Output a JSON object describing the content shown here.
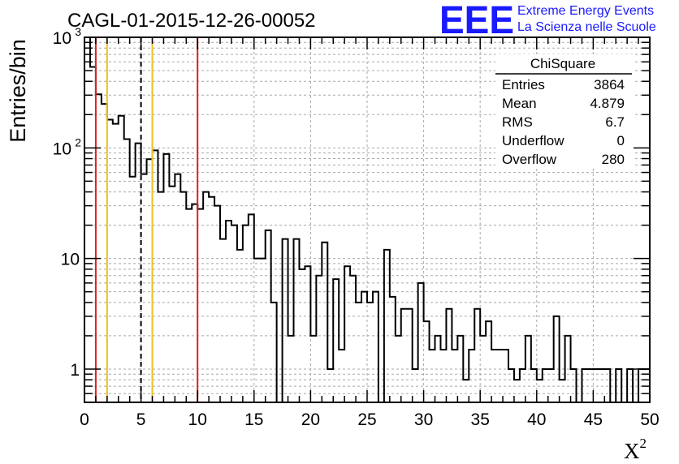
{
  "chart_data": {
    "type": "histogram",
    "title": "CAGL-01-2015-12-26-00052",
    "xlabel": "X",
    "xlabel_superscript": "2",
    "ylabel": "Entries/bin",
    "x_range": [
      0,
      50
    ],
    "y_range": [
      0.5,
      1000
    ],
    "y_scale": "log",
    "grid": true,
    "bin_width": 0.5,
    "x_ticks": [
      "0",
      "5",
      "10",
      "15",
      "20",
      "25",
      "30",
      "35",
      "40",
      "45",
      "50"
    ],
    "y_ticks": [
      {
        "value": 1,
        "label": "1"
      },
      {
        "value": 10,
        "label": "10"
      },
      {
        "value": 100,
        "label": "10",
        "sup": "2"
      },
      {
        "value": 1000,
        "label": "10",
        "sup": "3"
      }
    ],
    "values": [
      1000,
      540,
      305,
      250,
      180,
      165,
      195,
      120,
      55,
      110,
      58,
      79,
      95,
      40,
      88,
      45,
      58,
      40,
      28,
      31,
      28,
      40,
      36,
      30,
      15,
      22,
      20,
      12,
      20,
      25,
      10,
      10,
      18,
      4,
      0,
      15,
      2,
      15,
      8,
      8.5,
      2,
      7,
      14,
      1,
      6.5,
      1.5,
      8.5,
      7,
      4,
      5,
      4,
      5,
      0,
      12,
      4.5,
      2,
      3.5,
      3.5,
      1,
      6,
      2.7,
      1.5,
      2,
      1.5,
      3.5,
      1.5,
      2,
      0.8,
      1.5,
      3.5,
      2,
      2.7,
      1.5,
      1.5,
      1.5,
      1,
      0.8,
      1,
      2,
      1,
      0.8,
      1,
      1,
      3,
      0.8,
      2,
      1,
      0,
      1,
      1,
      1,
      1,
      1,
      0,
      1,
      0,
      1,
      0,
      1,
      1
    ],
    "vertical_lines": [
      {
        "x": 1,
        "color": "#e0201c",
        "style": "solid"
      },
      {
        "x": 2,
        "color": "#f0c020",
        "style": "solid"
      },
      {
        "x": 5,
        "color": "#000000",
        "style": "dashed"
      },
      {
        "x": 6,
        "color": "#f0c020",
        "style": "solid"
      },
      {
        "x": 10,
        "color": "#e0201c",
        "style": "solid"
      }
    ],
    "stats_box": {
      "title": "ChiSquare",
      "rows": [
        {
          "label": "Entries",
          "value": "3864"
        },
        {
          "label": "Mean",
          "value": "4.879"
        },
        {
          "label": "RMS",
          "value": "6.7"
        },
        {
          "label": "Underflow",
          "value": "0"
        },
        {
          "label": "Overflow",
          "value": "280"
        }
      ]
    }
  },
  "logo": {
    "text": "EEE",
    "line1": "Extreme Energy Events",
    "line2": "La Scienza nelle Scuole",
    "color": "#1a1aff"
  }
}
